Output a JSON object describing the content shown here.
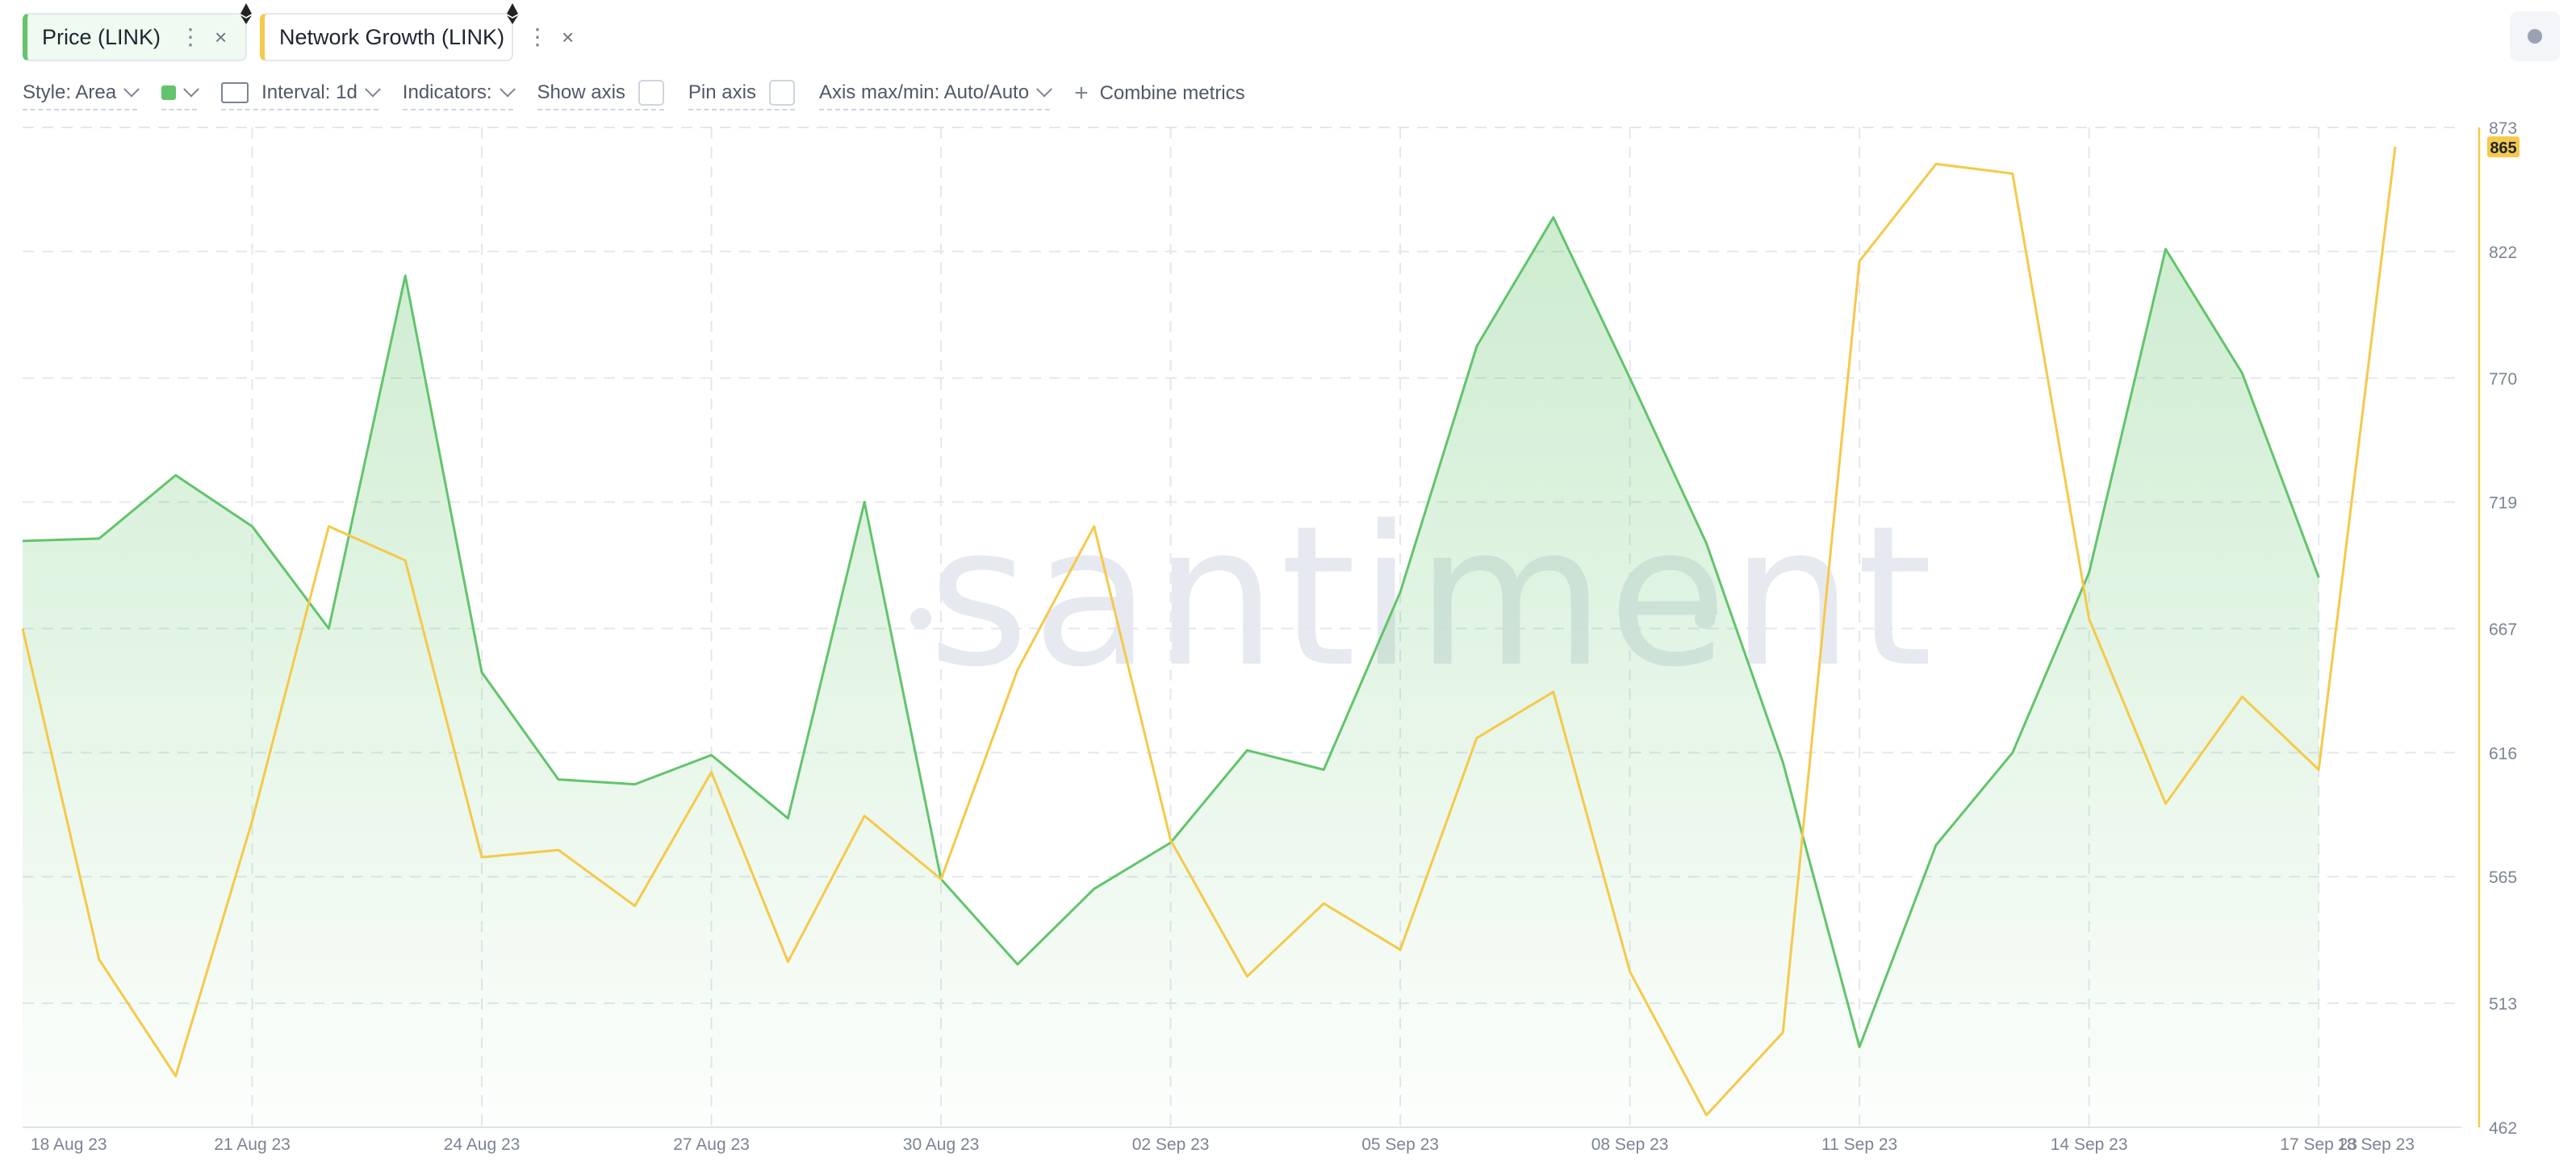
{
  "tabs": [
    {
      "label": "Price (LINK)",
      "color": "#62c46b"
    },
    {
      "label": "Network Growth (LINK)",
      "color": "#f5c94a"
    }
  ],
  "toolbar": {
    "style": "Style: Area",
    "interval": "Interval: 1d",
    "indicators": "Indicators:",
    "show_axis": "Show axis",
    "pin_axis": "Pin axis",
    "axis_minmax": "Axis max/min: Auto/Auto",
    "combine": "Combine metrics"
  },
  "watermark": "santiment",
  "chart_data": {
    "type": "line",
    "x": [
      "18 Aug 23",
      "19 Aug 23",
      "20 Aug 23",
      "21 Aug 23",
      "22 Aug 23",
      "23 Aug 23",
      "24 Aug 23",
      "25 Aug 23",
      "26 Aug 23",
      "27 Aug 23",
      "28 Aug 23",
      "29 Aug 23",
      "30 Aug 23",
      "31 Aug 23",
      "01 Sep 23",
      "02 Sep 23",
      "03 Sep 23",
      "04 Sep 23",
      "05 Sep 23",
      "06 Sep 23",
      "07 Sep 23",
      "08 Sep 23",
      "09 Sep 23",
      "10 Sep 23",
      "11 Sep 23",
      "12 Sep 23",
      "13 Sep 23",
      "14 Sep 23",
      "15 Sep 23",
      "16 Sep 23",
      "17 Sep 23",
      "18 Sep 23"
    ],
    "x_tick_labels": [
      "18 Aug 23",
      "21 Aug 23",
      "24 Aug 23",
      "27 Aug 23",
      "30 Aug 23",
      "02 Sep 23",
      "05 Sep 23",
      "08 Sep 23",
      "11 Sep 23",
      "14 Sep 23",
      "17 Sep 23",
      "18 Sep 23"
    ],
    "y_ticks": [
      462,
      513,
      565,
      616,
      667,
      719,
      770,
      822,
      873
    ],
    "ylim": [
      462,
      873
    ],
    "last_value_label": "865",
    "series": [
      {
        "name": "Price (LINK)",
        "style": "area",
        "color": "#62c46b",
        "values": [
          703,
          704,
          730,
          709,
          667,
          812,
          649,
          605,
          603,
          615,
          589,
          719,
          564,
          529,
          560,
          579,
          617,
          609,
          682,
          783,
          836,
          770,
          702,
          612,
          495,
          578,
          616,
          690,
          823,
          772,
          688,
          null
        ]
      },
      {
        "name": "Network Growth (LINK)",
        "style": "line",
        "color": "#f5c94a",
        "values": [
          667,
          531,
          483,
          588,
          709,
          695,
          573,
          576,
          553,
          608,
          530,
          590,
          564,
          650,
          709,
          580,
          524,
          554,
          535,
          622,
          641,
          526,
          467,
          501,
          818,
          858,
          854,
          671,
          595,
          639,
          609,
          865
        ]
      }
    ],
    "grid": true,
    "legend": "top-left"
  }
}
